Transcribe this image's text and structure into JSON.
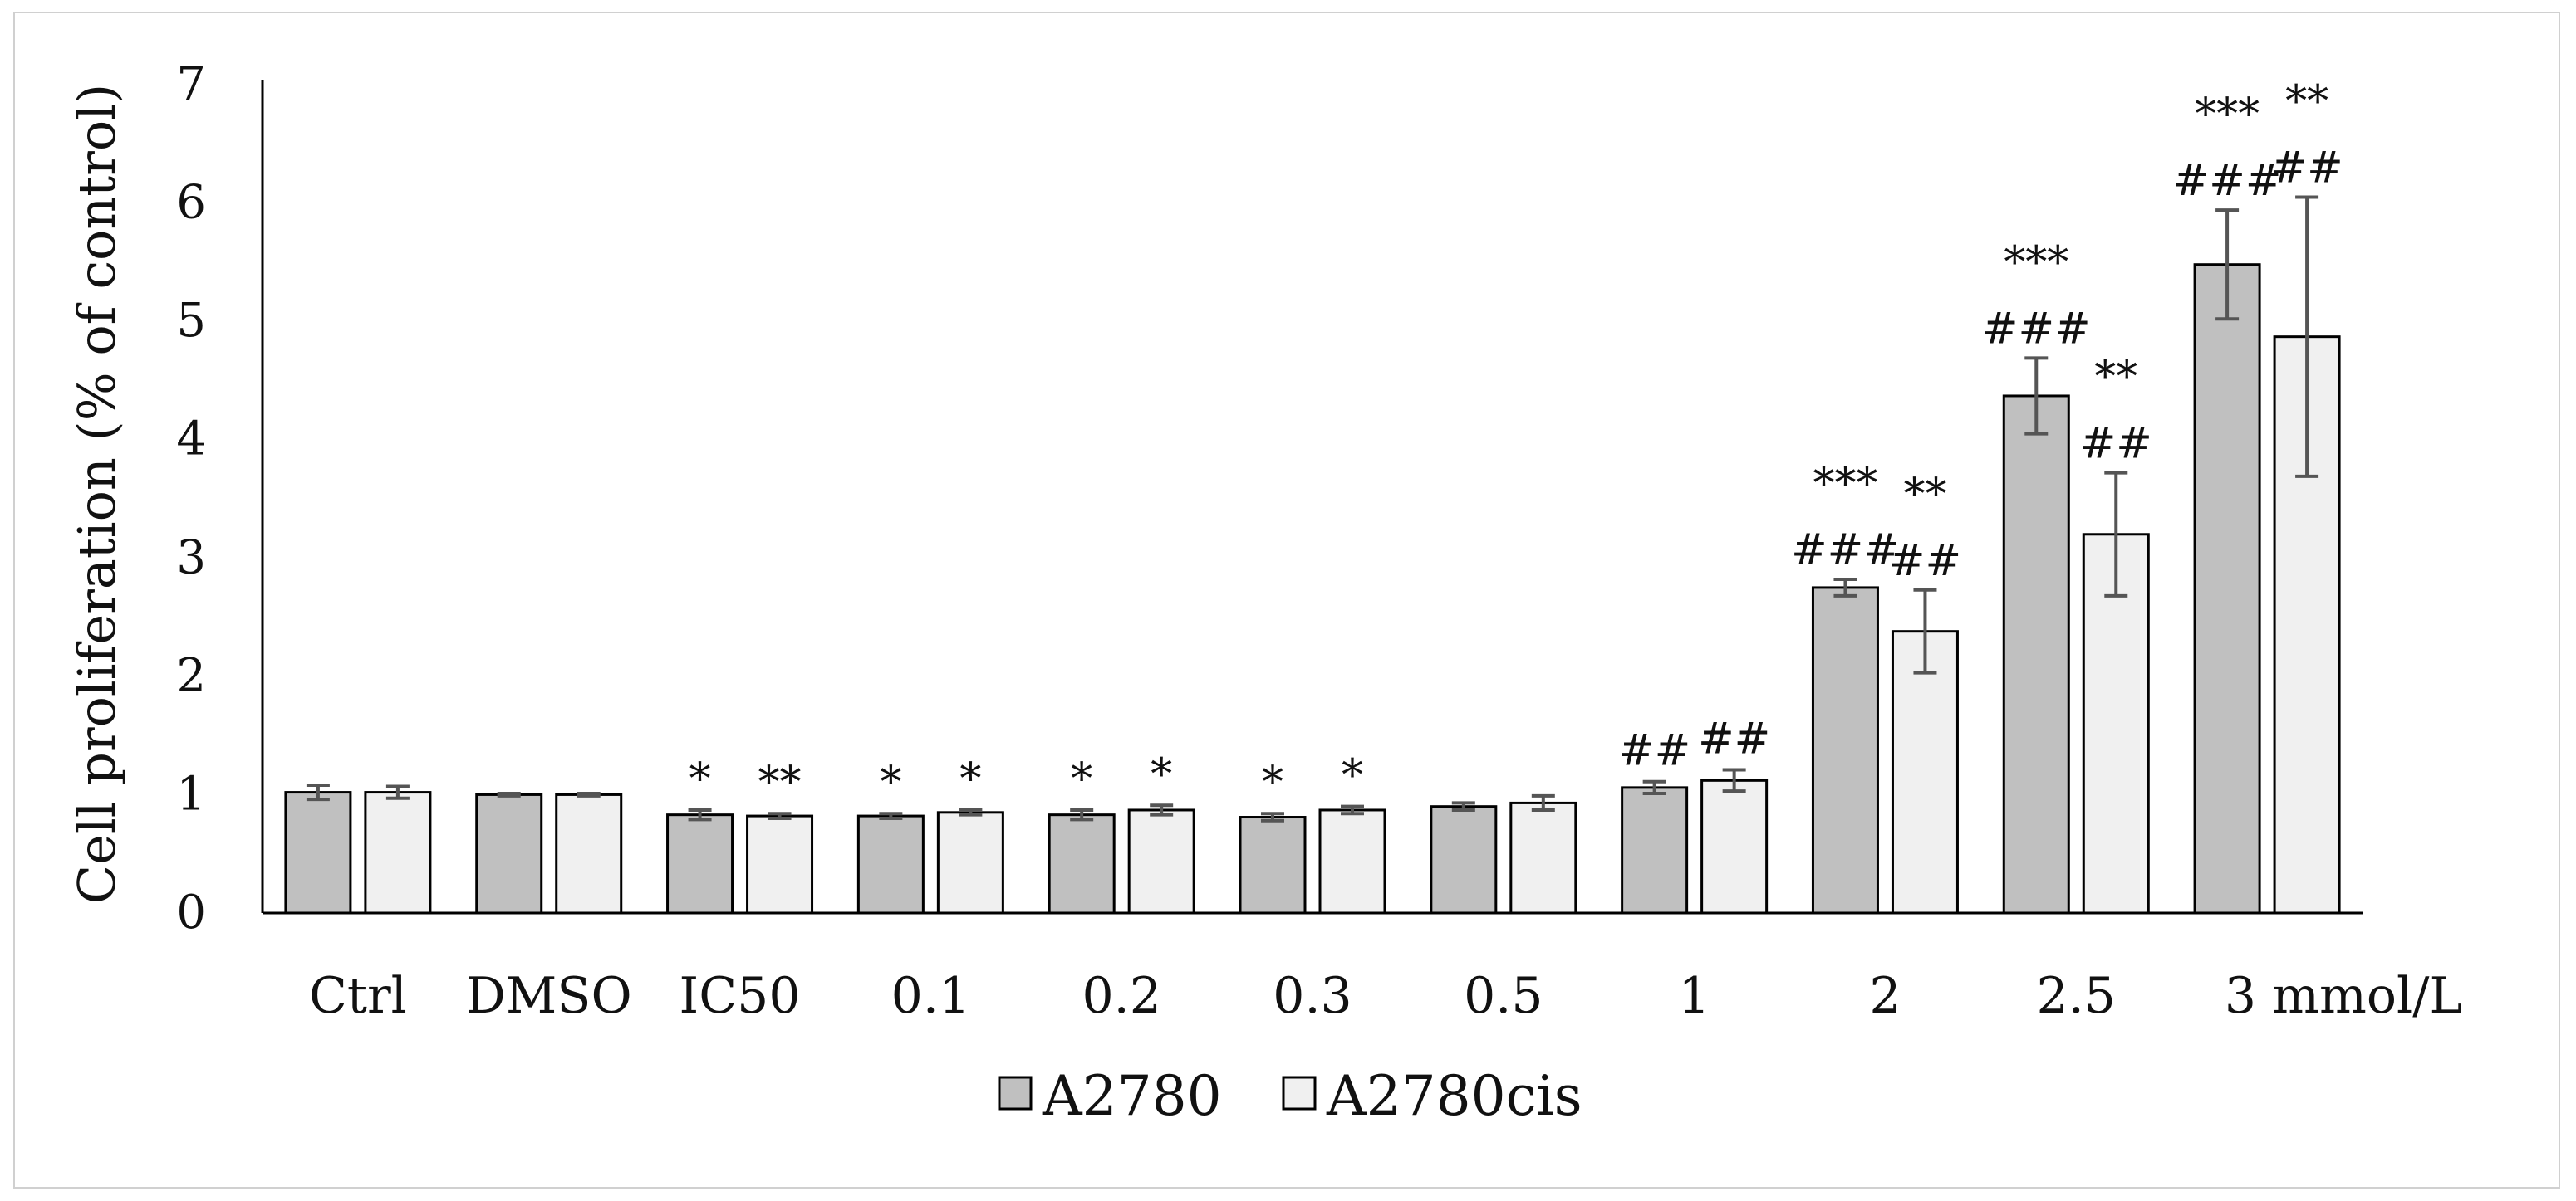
{
  "chart_data": {
    "type": "bar",
    "title": "",
    "xlabel": "",
    "ylabel": "Cell proliferation (% of control)",
    "ylim": [
      0,
      7
    ],
    "yticks": [
      "0",
      "1",
      "2",
      "3",
      "4",
      "5",
      "6",
      "7"
    ],
    "categories": [
      "Ctrl",
      "DMSO",
      "IC50",
      "0.1",
      "0.2",
      "0.3",
      "0.5",
      "1",
      "2",
      "2.5",
      "3 mmol/L"
    ],
    "grid": false,
    "legend_position": "bottom-center",
    "series": [
      {
        "name": "A2780",
        "color": "#c0c0c0",
        "values": [
          1.02,
          1.0,
          0.83,
          0.82,
          0.83,
          0.81,
          0.9,
          1.06,
          2.75,
          4.37,
          5.48
        ],
        "errors": [
          0.06,
          0.01,
          0.04,
          0.02,
          0.04,
          0.03,
          0.03,
          0.05,
          0.07,
          0.32,
          0.46
        ],
        "annotations": [
          [
            "",
            ""
          ],
          [
            "",
            ""
          ],
          [
            "*",
            ""
          ],
          [
            "*",
            ""
          ],
          [
            "*",
            ""
          ],
          [
            "*",
            ""
          ],
          [
            "",
            ""
          ],
          [
            "##",
            ""
          ],
          [
            "***",
            "###"
          ],
          [
            "***",
            "###"
          ],
          [
            "***",
            "###"
          ]
        ]
      },
      {
        "name": "A2780cis",
        "color": "#f0f0f0",
        "values": [
          1.02,
          1.0,
          0.82,
          0.85,
          0.87,
          0.87,
          0.93,
          1.12,
          2.38,
          3.2,
          4.87
        ],
        "errors": [
          0.05,
          0.01,
          0.02,
          0.02,
          0.04,
          0.03,
          0.06,
          0.09,
          0.35,
          0.52,
          1.18
        ],
        "annotations": [
          [
            "",
            ""
          ],
          [
            "",
            ""
          ],
          [
            "**",
            ""
          ],
          [
            "*",
            ""
          ],
          [
            "*",
            ""
          ],
          [
            "*",
            ""
          ],
          [
            "",
            ""
          ],
          [
            "##",
            ""
          ],
          [
            "**",
            "##"
          ],
          [
            "**",
            "##"
          ],
          [
            "**",
            "##"
          ]
        ]
      }
    ]
  },
  "legend": {
    "items": [
      "A2780",
      "A2780cis"
    ]
  }
}
